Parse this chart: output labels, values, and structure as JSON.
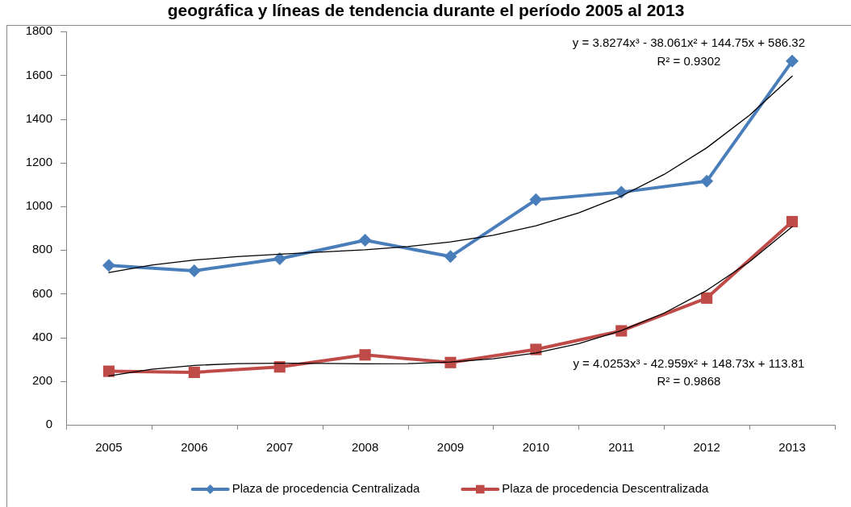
{
  "chart_data": {
    "type": "line",
    "title": "geográfica y líneas de tendencia durante el período 2005 al 2013",
    "x": [
      2005,
      2006,
      2007,
      2008,
      2009,
      2010,
      2011,
      2012,
      2013
    ],
    "xlim": [
      2004.5,
      2013.5
    ],
    "xticks": [
      {
        "value": 2004.5,
        "label": null
      },
      2005,
      {
        "value": 2005.5,
        "label": null
      },
      2006,
      {
        "value": 2006.5,
        "label": null
      },
      2007,
      {
        "value": 2007.5,
        "label": null
      },
      2008,
      {
        "value": 2008.5,
        "label": null
      },
      2009,
      {
        "value": 2009.5,
        "label": null
      },
      2010,
      {
        "value": 2010.5,
        "label": null
      },
      2011,
      {
        "value": 2011.5,
        "label": null
      },
      2012,
      {
        "value": 2012.5,
        "label": null
      },
      2013,
      {
        "value": 2013.5,
        "label": null
      }
    ],
    "ylim": [
      0,
      1800
    ],
    "yticks": [
      0,
      200,
      400,
      600,
      800,
      1000,
      1200,
      1400,
      1600,
      1800
    ],
    "legend": "bottom",
    "series": [
      {
        "name": "Plaza de procedencia Centralizada",
        "color": "#4a7ebb",
        "marker": "diamond",
        "values": [
          730,
          705,
          760,
          845,
          770,
          1030,
          1065,
          1115,
          1665
        ]
      },
      {
        "name": "Plaza de procedencia Descentralizada",
        "color": "#be4b48",
        "marker": "square",
        "values": [
          245,
          240,
          265,
          320,
          285,
          345,
          430,
          580,
          930
        ]
      },
      {
        "type": "line",
        "color": "#000000",
        "marker": "none",
        "x": [
          2005,
          2005.5,
          2006,
          2006.5,
          2007,
          2007.5,
          2008,
          2008.5,
          2009,
          2009.5,
          2010,
          2010.5,
          2011,
          2011.5,
          2012,
          2012.5,
          2013
        ],
        "values": [
          697,
          731,
          754,
          770,
          781,
          791,
          801,
          816,
          837,
          868,
          911,
          970,
          1047,
          1146,
          1268,
          1417,
          1596
        ]
      },
      {
        "type": "line",
        "color": "#000000",
        "marker": "none",
        "x": [
          2005,
          2005.5,
          2006,
          2006.5,
          2007,
          2007.5,
          2008,
          2008.5,
          2009,
          2009.5,
          2010,
          2010.5,
          2011,
          2011.5,
          2012,
          2012.5,
          2013
        ],
        "values": [
          224,
          254,
          272,
          280,
          282,
          281,
          279,
          280,
          287,
          302,
          329,
          371,
          431,
          511,
          615,
          746,
          907
        ]
      }
    ],
    "annotations": [
      "y = 3.8274x³ - 38.061x² + 144.75x + 586.32",
      "R² = 0.9302",
      "y = 4.0253x³ - 42.959x² + 148.73x + 113.81",
      "R² = 0.9868"
    ]
  }
}
